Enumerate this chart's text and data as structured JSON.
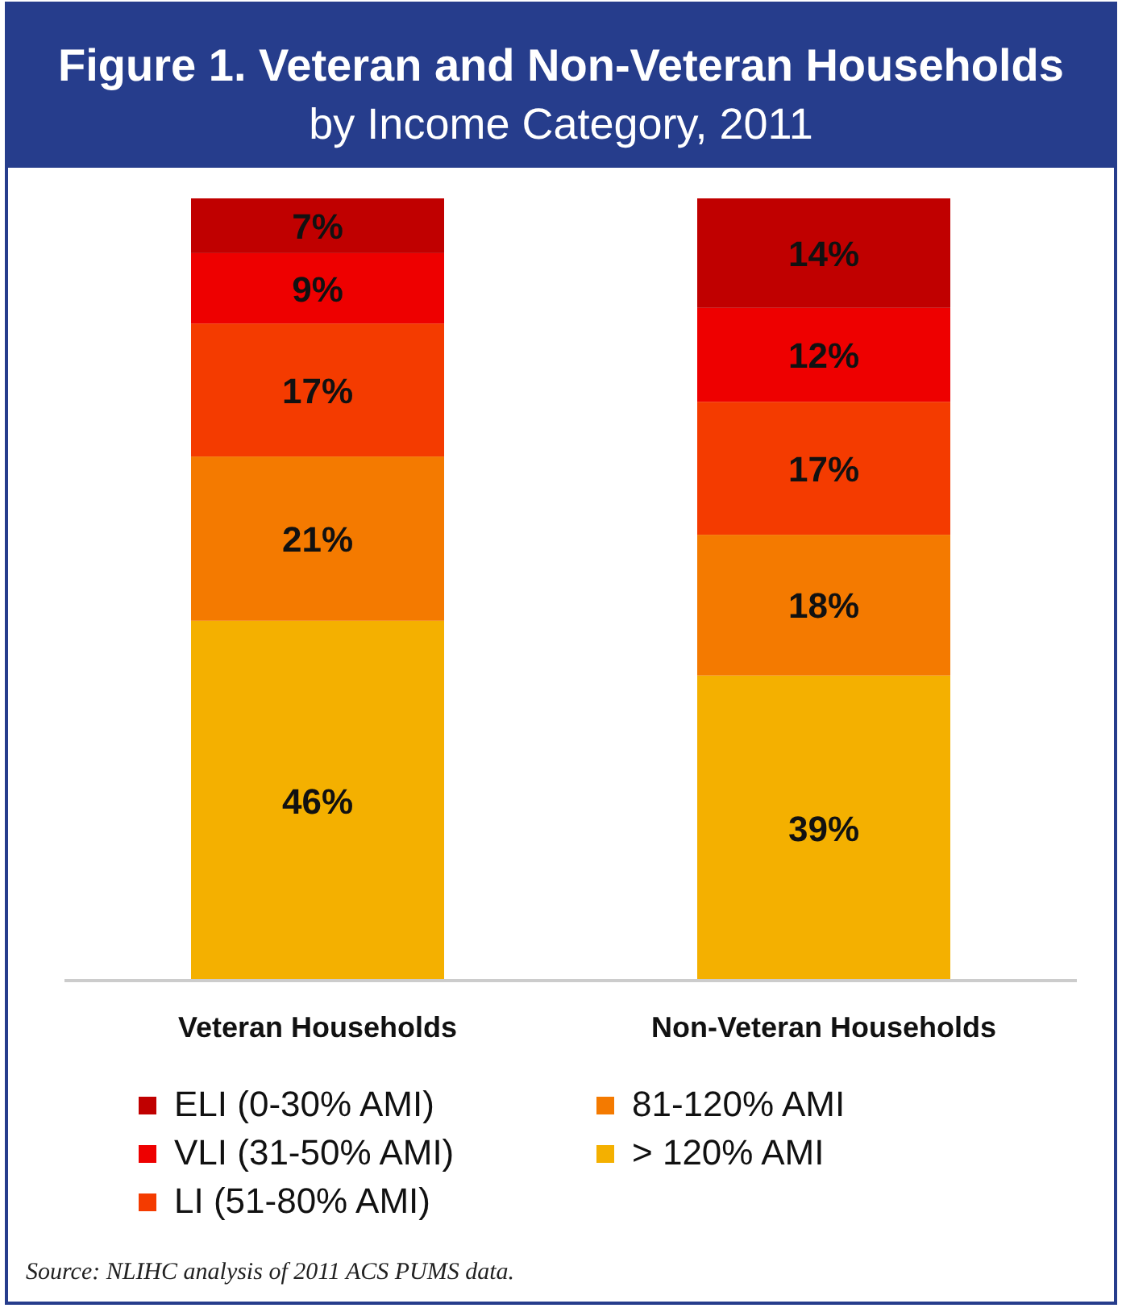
{
  "chart_data": {
    "type": "bar",
    "stacked": true,
    "title": "Figure 1. Veteran and Non-Veteran Households",
    "subtitle": "by Income Category, 2011",
    "categories": [
      "Veteran Households",
      "Non-Veteran Households"
    ],
    "series": [
      {
        "name": "> 120% AMI",
        "color": "#f4b000",
        "values": [
          46,
          39
        ],
        "value_labels": [
          "46%",
          "39%"
        ]
      },
      {
        "name": "81-120% AMI",
        "color": "#f47a00",
        "values": [
          21,
          18
        ],
        "value_labels": [
          "21%",
          "18%"
        ]
      },
      {
        "name": "LI (51-80% AMI)",
        "color": "#f43b00",
        "values": [
          17,
          17
        ],
        "value_labels": [
          "17%",
          "17%"
        ]
      },
      {
        "name": "VLI (31-50% AMI)",
        "color": "#ee0000",
        "values": [
          9,
          12
        ],
        "value_labels": [
          "9%",
          "12%"
        ]
      },
      {
        "name": "ELI (0-30% AMI)",
        "color": "#c00000",
        "values": [
          7,
          14
        ],
        "value_labels": [
          "7%",
          "14%"
        ]
      }
    ],
    "legend": "bottom",
    "annotations": [
      "Source: NLIHC analysis of 2011 ACS PUMS data."
    ]
  }
}
